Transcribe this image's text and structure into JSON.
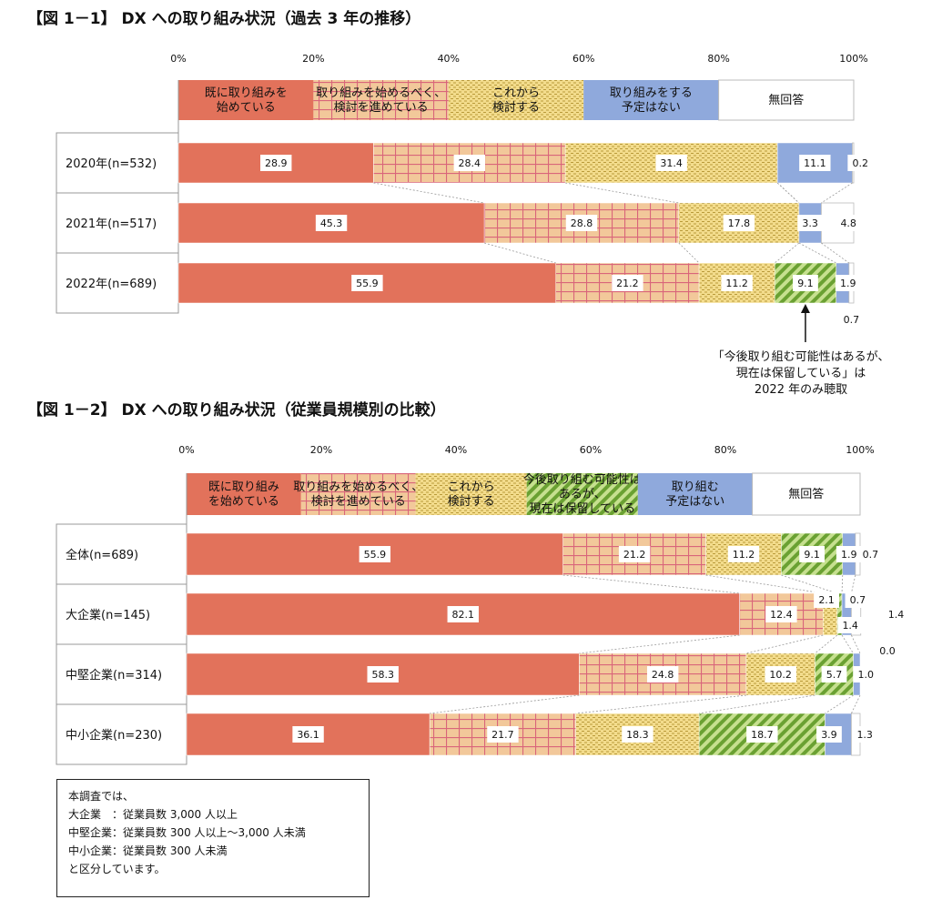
{
  "chart_data": [
    {
      "type": "bar",
      "orientation": "horizontal-stacked-100",
      "title": "【図 1－1】 DX への取り組み状況（過去 3 年の推移）",
      "xlim": [
        0,
        100
      ],
      "xticks": [
        "0%",
        "20%",
        "40%",
        "60%",
        "80%",
        "100%"
      ],
      "legend_placement": "top",
      "series_order": [
        "s1",
        "s2",
        "s3",
        "s4",
        "s5",
        "s6"
      ],
      "series": [
        {
          "key": "s1",
          "name": "既に取り組みを\n始めている",
          "color": "#e2725b"
        },
        {
          "key": "s2",
          "name": "取り組みを始めるべく、\n検討を進めている",
          "color": "#f2c89a"
        },
        {
          "key": "s3",
          "name": "これから\n検討する",
          "color": "#f3dc8c"
        },
        {
          "key": "s4",
          "name": "",
          "color": "#7cb342"
        },
        {
          "key": "s5",
          "name": "取り組みをする\n予定はない",
          "color": "#8fa9dc"
        },
        {
          "key": "s6",
          "name": "無回答",
          "color": "#ffffff"
        }
      ],
      "legend_keys": [
        "s1",
        "s2",
        "s3",
        "s5",
        "s6"
      ],
      "categories": [
        "2020年(n=532)",
        "2021年(n=517)",
        "2022年(n=689)"
      ],
      "values": [
        [
          28.9,
          28.4,
          31.4,
          0,
          11.1,
          0.2
        ],
        [
          45.3,
          28.8,
          17.8,
          0,
          3.3,
          4.8
        ],
        [
          55.9,
          21.2,
          11.2,
          9.1,
          1.9,
          0.7
        ]
      ],
      "labels": [
        [
          "28.9",
          "28.4",
          "31.4",
          "",
          "11.1",
          "0.2"
        ],
        [
          "45.3",
          "28.8",
          "17.8",
          "",
          "3.3",
          "4.8"
        ],
        [
          "55.9",
          "21.2",
          "11.2",
          "9.1",
          "1.9",
          "0.7"
        ]
      ],
      "annotation": "「今後取り組む可能性はあるが、\n現在は保留している」は\n2022 年のみ聴取"
    },
    {
      "type": "bar",
      "orientation": "horizontal-stacked-100",
      "title": "【図 1－2】 DX への取り組み状況（従業員規模別の比較）",
      "xlim": [
        0,
        100
      ],
      "xticks": [
        "0%",
        "20%",
        "40%",
        "60%",
        "80%",
        "100%"
      ],
      "legend_placement": "top",
      "series": [
        {
          "key": "s1",
          "name": "既に取り組み\nを始めている",
          "color": "#e2725b"
        },
        {
          "key": "s2",
          "name": "取り組みを始めるべく、\n検討を進めている",
          "color": "#f2c89a"
        },
        {
          "key": "s3",
          "name": "これから\n検討する",
          "color": "#f3dc8c"
        },
        {
          "key": "s4",
          "name": "今後取り組む可能性は\nあるが、\n現在は保留している",
          "color": "#7cb342"
        },
        {
          "key": "s5",
          "name": "取り組む\n予定はない",
          "color": "#8fa9dc"
        },
        {
          "key": "s6",
          "name": "無回答",
          "color": "#ffffff"
        }
      ],
      "legend_keys": [
        "s1",
        "s2",
        "s3",
        "s4",
        "s5",
        "s6"
      ],
      "categories": [
        "全体(n=689)",
        "大企業(n=145)",
        "中堅企業(n=314)",
        "中小企業(n=230)"
      ],
      "values": [
        [
          55.9,
          21.2,
          11.2,
          9.1,
          1.9,
          0.7
        ],
        [
          82.1,
          12.4,
          2.1,
          0.7,
          1.4,
          1.4
        ],
        [
          58.3,
          24.8,
          10.2,
          5.7,
          1.0,
          0.0
        ],
        [
          36.1,
          21.7,
          18.3,
          18.7,
          3.9,
          1.3
        ]
      ],
      "labels": [
        [
          "55.9",
          "21.2",
          "11.2",
          "9.1",
          "1.9",
          "0.7"
        ],
        [
          "82.1",
          "12.4",
          "2.1",
          "0.7",
          "1.4",
          "1.4"
        ],
        [
          "58.3",
          "24.8",
          "10.2",
          "5.7",
          "1.0",
          "0.0"
        ],
        [
          "36.1",
          "21.7",
          "18.3",
          "18.7",
          "3.9",
          "1.3"
        ]
      ]
    }
  ],
  "note": {
    "lines": [
      "本調査では、",
      "大企業　：従業員数 3,000 人以上",
      "中堅企業：従業員数 300 人以上～3,000 人未満",
      "中小企業：従業員数 300 人未満",
      "と区分しています。"
    ]
  }
}
